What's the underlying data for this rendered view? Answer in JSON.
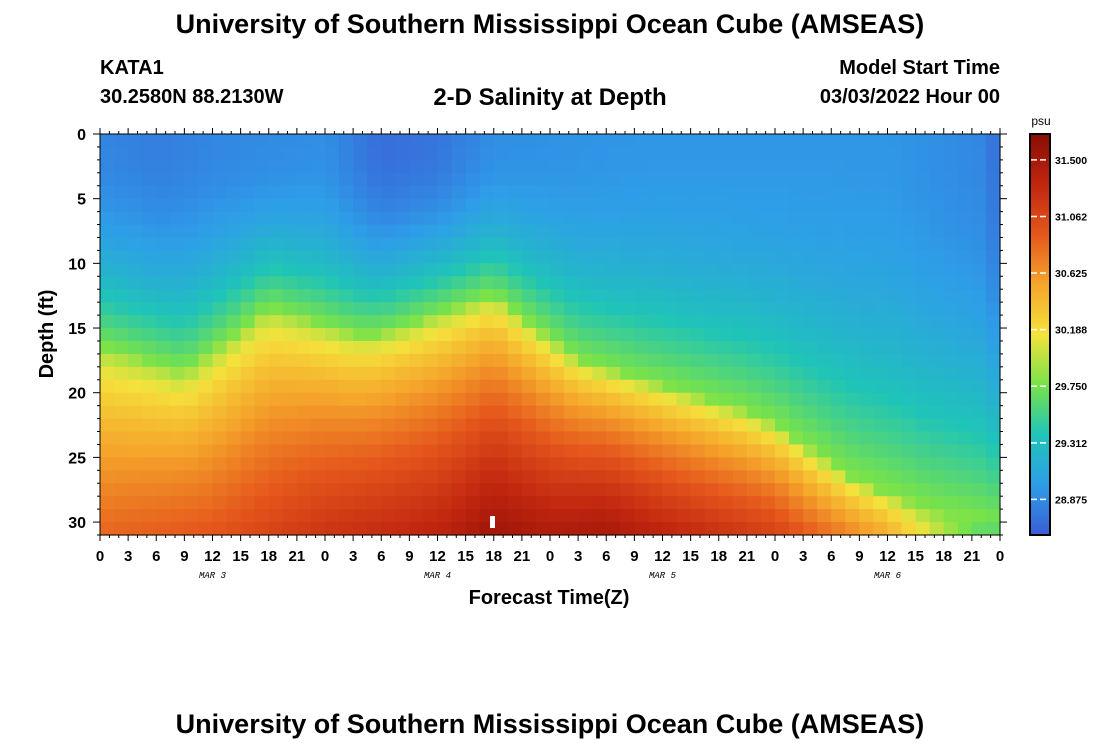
{
  "header": {
    "title": "University of Southern Mississippi Ocean Cube (AMSEAS)",
    "station": "KATA1",
    "coords": "30.2580N  88.2130W",
    "plot_title": "2-D Salinity at Depth",
    "model_start_label": "Model Start Time",
    "model_start_value": "03/03/2022 Hour 00"
  },
  "footer": {
    "title": "University of Southern Mississippi Ocean Cube (AMSEAS)"
  },
  "chart_data": {
    "type": "heatmap",
    "xlabel": "Forecast Time(Z)",
    "ylabel": "Depth (ft)",
    "x_hours_range": [
      0,
      96
    ],
    "x_tick_labels": [
      "0",
      "3",
      "6",
      "9",
      "12",
      "15",
      "18",
      "21",
      "0",
      "3",
      "6",
      "9",
      "12",
      "15",
      "18",
      "21",
      "0",
      "3",
      "6",
      "9",
      "12",
      "15",
      "18",
      "21",
      "0",
      "3",
      "6",
      "9",
      "12",
      "15",
      "18",
      "21",
      "0"
    ],
    "x_day_labels": [
      {
        "label": "MAR 3",
        "hour": 12
      },
      {
        "label": "MAR 4",
        "hour": 36
      },
      {
        "label": "MAR 5",
        "hour": 60
      },
      {
        "label": "MAR 6",
        "hour": 84
      }
    ],
    "y_range": [
      0,
      31
    ],
    "y_ticks": [
      0,
      5,
      10,
      15,
      20,
      25,
      30
    ],
    "colorbar": {
      "unit": "psu",
      "range": [
        28.6,
        31.7
      ],
      "ticks": [
        28.875,
        29.312,
        29.75,
        30.188,
        30.625,
        31.062,
        31.5
      ],
      "tick_labels": [
        "28.875",
        "29.312",
        "29.750",
        "30.188",
        "30.625",
        "31.062",
        "31.500"
      ]
    },
    "halocline_depth_ft": [
      {
        "hour": 0,
        "depth": 16.5
      },
      {
        "hour": 9,
        "depth": 18.5
      },
      {
        "hour": 18,
        "depth": 13.5
      },
      {
        "hour": 27,
        "depth": 15.5
      },
      {
        "hour": 30,
        "depth": 15.5
      },
      {
        "hour": 42,
        "depth": 12.5
      },
      {
        "hour": 51,
        "depth": 17.5
      },
      {
        "hour": 60,
        "depth": 19.5
      },
      {
        "hour": 69,
        "depth": 21.5
      },
      {
        "hour": 72,
        "depth": 22.5
      },
      {
        "hour": 80,
        "depth": 26.5
      },
      {
        "hour": 88,
        "depth": 29.0
      },
      {
        "hour": 96,
        "depth": 30.5
      }
    ],
    "surface_salinity_psu": [
      {
        "hour": 0,
        "value": 28.85
      },
      {
        "hour": 6,
        "value": 28.8
      },
      {
        "hour": 12,
        "value": 28.85
      },
      {
        "hour": 24,
        "value": 28.9
      },
      {
        "hour": 30,
        "value": 28.7
      },
      {
        "hour": 36,
        "value": 28.75
      },
      {
        "hour": 42,
        "value": 28.9
      },
      {
        "hour": 60,
        "value": 28.95
      },
      {
        "hour": 72,
        "value": 28.95
      },
      {
        "hour": 84,
        "value": 28.95
      },
      {
        "hour": 94,
        "value": 28.85
      },
      {
        "hour": 96,
        "value": 28.7
      }
    ],
    "bottom_salinity_psu": [
      {
        "hour": 0,
        "value": 30.85
      },
      {
        "hour": 12,
        "value": 30.95
      },
      {
        "hour": 24,
        "value": 31.2
      },
      {
        "hour": 36,
        "value": 31.35
      },
      {
        "hour": 42,
        "value": 31.55
      },
      {
        "hour": 48,
        "value": 31.45
      },
      {
        "hour": 54,
        "value": 31.5
      },
      {
        "hour": 60,
        "value": 31.35
      },
      {
        "hour": 72,
        "value": 31.1
      },
      {
        "hour": 84,
        "value": 30.5
      },
      {
        "hour": 96,
        "value": 29.4
      }
    ],
    "colors": {
      "colormap": [
        "#3a5dd6",
        "#2e9ee8",
        "#1fc4b8",
        "#78e24a",
        "#f5e23c",
        "#f5a52b",
        "#e5571c",
        "#c0260f",
        "#8a0b05"
      ],
      "marker": "#ffffff"
    }
  }
}
